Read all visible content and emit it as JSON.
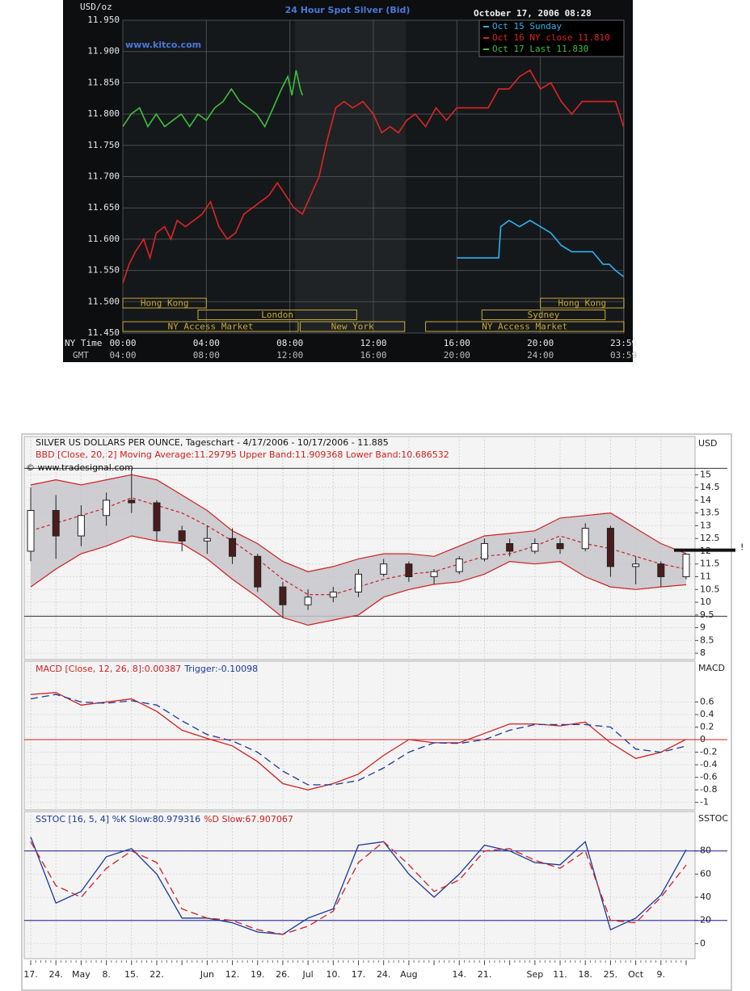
{
  "chart_data": [
    {
      "type": "line",
      "title": "24 Hour Spot Silver (Bid)",
      "timestamp": "October 17, 2006 08:28",
      "y_label": "USD/oz",
      "watermark": "www.kitco.com",
      "x_label": "NY Time",
      "x2_label": "GMT",
      "x2_ticklabels": [
        "04:00",
        "08:00",
        "12:00",
        "16:00",
        "20:00",
        "24:00",
        "03:59"
      ],
      "xlim": [
        0,
        24
      ],
      "xticks": [
        {
          "value": 0,
          "label": "00:00"
        },
        {
          "value": 4,
          "label": "04:00"
        },
        {
          "value": 8,
          "label": "08:00"
        },
        {
          "value": 12,
          "label": "12:00"
        },
        {
          "value": 16,
          "label": "16:00"
        },
        {
          "value": 20,
          "label": "20:00"
        },
        {
          "value": 23.983,
          "label": "23:59"
        }
      ],
      "ylim": [
        11.45,
        11.95
      ],
      "yticks": [
        {
          "value": 11.45,
          "label": "11.450"
        },
        {
          "value": 11.5,
          "label": "11.500"
        },
        {
          "value": 11.55,
          "label": "11.550"
        },
        {
          "value": 11.6,
          "label": "11.600"
        },
        {
          "value": 11.65,
          "label": "11.650"
        },
        {
          "value": 11.7,
          "label": "11.700"
        },
        {
          "value": 11.75,
          "label": "11.750"
        },
        {
          "value": 11.8,
          "label": "11.800"
        },
        {
          "value": 11.85,
          "label": "11.850"
        },
        {
          "value": 11.9,
          "label": "11.900"
        },
        {
          "value": 11.95,
          "label": "11.950"
        }
      ],
      "grid": true,
      "background": "#0c0e10",
      "session_color": "#c8a838",
      "sessions": [
        [
          {
            "label": "Hong Kong",
            "start": 0,
            "end": 4
          },
          {
            "label": "Hong Kong",
            "start": 20,
            "end": 24
          }
        ],
        [
          {
            "label": "London",
            "start": 3.6,
            "end": 11.2
          },
          {
            "label": "Sydney",
            "start": 17.2,
            "end": 23.1
          }
        ],
        [
          {
            "label": "NY Access Market",
            "start": 0,
            "end": 8.4
          },
          {
            "label": "New York",
            "start": 8.5,
            "end": 13.5
          },
          {
            "label": "NY Access Market",
            "start": 14.5,
            "end": 24
          }
        ]
      ],
      "series": [
        {
          "name": "Oct 15 Sunday",
          "color": "#2ab4f0",
          "x": [
            16,
            18,
            18.1,
            18.5,
            19,
            19.5,
            20,
            20.5,
            21,
            21.5,
            22,
            22.5,
            23,
            23.3,
            23.6,
            23.98
          ],
          "values": [
            11.57,
            11.57,
            11.62,
            11.63,
            11.62,
            11.63,
            11.62,
            11.61,
            11.59,
            11.58,
            11.58,
            11.58,
            11.56,
            11.56,
            11.55,
            11.54
          ]
        },
        {
          "name": "Oct 16 NY close 11.810",
          "color": "#e02424",
          "x": [
            0,
            0.3,
            0.6,
            1,
            1.3,
            1.6,
            2,
            2.3,
            2.6,
            3,
            3.4,
            3.8,
            4.2,
            4.6,
            5,
            5.4,
            5.8,
            6.2,
            6.6,
            7,
            7.4,
            7.8,
            8.2,
            8.6,
            9,
            9.4,
            9.8,
            10.2,
            10.6,
            11,
            11.5,
            12,
            12.4,
            12.8,
            13.2,
            13.6,
            14,
            14.5,
            15,
            15.5,
            16,
            17,
            17.5,
            18,
            18.5,
            19,
            19.5,
            20,
            20.5,
            21,
            21.5,
            22,
            23,
            23.6,
            23.98
          ],
          "values": [
            11.53,
            11.56,
            11.58,
            11.6,
            11.57,
            11.61,
            11.62,
            11.6,
            11.63,
            11.62,
            11.63,
            11.64,
            11.66,
            11.62,
            11.6,
            11.61,
            11.64,
            11.65,
            11.66,
            11.67,
            11.69,
            11.67,
            11.65,
            11.64,
            11.67,
            11.7,
            11.76,
            11.81,
            11.82,
            11.81,
            11.82,
            11.8,
            11.77,
            11.78,
            11.77,
            11.79,
            11.8,
            11.78,
            11.81,
            11.79,
            11.81,
            11.81,
            11.81,
            11.84,
            11.84,
            11.86,
            11.87,
            11.84,
            11.85,
            11.82,
            11.8,
            11.82,
            11.82,
            11.82,
            11.78
          ]
        },
        {
          "name": "Oct 17 Last 11.830",
          "color": "#3cc03c",
          "x": [
            0,
            0.4,
            0.8,
            1.2,
            1.6,
            2,
            2.4,
            2.8,
            3.2,
            3.6,
            4,
            4.4,
            4.8,
            5.2,
            5.6,
            6,
            6.4,
            6.8,
            7.2,
            7.6,
            7.9,
            8.1,
            8.3,
            8.5,
            8.6
          ],
          "values": [
            11.78,
            11.8,
            11.81,
            11.78,
            11.8,
            11.78,
            11.79,
            11.8,
            11.78,
            11.8,
            11.79,
            11.81,
            11.82,
            11.84,
            11.82,
            11.81,
            11.8,
            11.78,
            11.81,
            11.84,
            11.86,
            11.83,
            11.87,
            11.84,
            11.83
          ]
        }
      ]
    },
    {
      "type": "panels",
      "title": "SILVER US DOLLARS PER OUNCE, Tageschart - 4/17/2006 - 10/17/2006 - 11.885",
      "copyright": "© www.tradesignal.com",
      "categories": [
        "17.",
        "24.",
        "May",
        "8.",
        "15.",
        "22.",
        null,
        "Jun",
        "12.",
        "19.",
        "26.",
        "Jul",
        "10.",
        "17.",
        "24.",
        "Aug",
        null,
        "14.",
        "21.",
        null,
        "Sep",
        "11.",
        "18.",
        "25.",
        "Oct",
        "9.",
        null
      ],
      "panels": [
        {
          "type": "candlestick",
          "axis_label": "USD",
          "legend": "BBD [Close, 20, 2] Moving Average:11.29795 Upper Band:11.909368 Lower Band:10.686532",
          "legend_color": "#d02020",
          "marker": "!",
          "open": [
            12.0,
            13.6,
            12.6,
            13.4,
            14.0,
            13.9,
            12.8,
            12.4,
            12.5,
            11.8,
            10.6,
            9.9,
            10.2,
            10.4,
            11.1,
            11.5,
            11.0,
            11.2,
            11.7,
            12.3,
            12.0,
            12.3,
            12.1,
            12.9,
            11.4,
            11.5,
            11.0
          ],
          "high": [
            14.5,
            14.2,
            13.8,
            14.3,
            15.2,
            14.0,
            13.0,
            13.0,
            12.9,
            11.9,
            10.8,
            10.5,
            10.6,
            11.3,
            11.7,
            11.6,
            11.3,
            11.8,
            12.5,
            12.5,
            12.5,
            12.5,
            13.1,
            13.0,
            11.8,
            11.6,
            11.9
          ],
          "low": [
            11.6,
            11.7,
            12.2,
            13.0,
            13.5,
            12.4,
            12.0,
            11.9,
            11.5,
            10.4,
            9.4,
            9.7,
            10.0,
            10.2,
            11.0,
            10.8,
            10.7,
            11.1,
            11.6,
            11.8,
            11.9,
            11.9,
            12.0,
            11.0,
            10.7,
            10.6,
            10.9
          ],
          "close": [
            13.6,
            12.6,
            13.4,
            14.0,
            13.9,
            12.8,
            12.4,
            12.5,
            11.8,
            10.6,
            9.9,
            10.2,
            10.4,
            11.1,
            11.5,
            11.0,
            11.2,
            11.7,
            12.3,
            12.0,
            12.3,
            12.1,
            12.9,
            11.4,
            11.5,
            11.0,
            11.885
          ],
          "bands": {
            "color": "#d02020",
            "fill": "#c6c6cb",
            "upper": [
              14.6,
              14.8,
              14.6,
              14.8,
              15.0,
              14.8,
              14.2,
              13.6,
              12.8,
              12.3,
              11.6,
              11.2,
              11.4,
              11.7,
              11.9,
              11.9,
              11.8,
              12.2,
              12.6,
              12.7,
              12.8,
              13.3,
              13.4,
              13.5,
              12.9,
              12.3,
              11.909368
            ],
            "middle": [
              12.8,
              13.1,
              13.4,
              13.7,
              14.1,
              13.8,
              13.5,
              13.0,
              12.4,
              11.7,
              10.9,
              10.3,
              10.3,
              10.6,
              10.9,
              11.1,
              11.2,
              11.5,
              11.8,
              11.9,
              12.2,
              12.6,
              12.3,
              12.1,
              11.8,
              11.5,
              11.29795
            ],
            "lower": [
              10.6,
              11.3,
              11.9,
              12.2,
              12.6,
              12.4,
              12.3,
              11.7,
              10.9,
              10.2,
              9.4,
              9.1,
              9.3,
              9.5,
              10.2,
              10.5,
              10.7,
              10.8,
              11.1,
              11.6,
              11.5,
              11.6,
              11.0,
              10.6,
              10.5,
              10.6,
              10.686532
            ]
          },
          "hlines": [
            15.25,
            9.45
          ],
          "hline_color": "#333333",
          "ylim": [
            7.75,
            16.5
          ],
          "yticks": [
            8,
            8.5,
            9,
            9.5,
            10,
            10.5,
            11,
            11.5,
            12,
            12.5,
            13,
            13.5,
            14,
            14.5,
            15
          ]
        },
        {
          "type": "line",
          "axis_label": "MACD",
          "hlines": [
            0
          ],
          "hline_color": "#d02020",
          "series": [
            {
              "name": "MACD [Close, 12, 26, 8]:0.00387",
              "color": "#d02020",
              "dashed": false,
              "values": [
                0.72,
                0.75,
                0.55,
                0.6,
                0.65,
                0.45,
                0.15,
                0.02,
                -0.1,
                -0.35,
                -0.7,
                -0.8,
                -0.7,
                -0.55,
                -0.25,
                0.0,
                -0.05,
                -0.05,
                0.1,
                0.25,
                0.25,
                0.22,
                0.28,
                -0.05,
                -0.3,
                -0.2,
                0.00387
              ]
            },
            {
              "name": "Trigger:-0.10098",
              "color": "#1a3a9a",
              "dashed": true,
              "values": [
                0.65,
                0.72,
                0.6,
                0.58,
                0.62,
                0.55,
                0.3,
                0.08,
                -0.02,
                -0.2,
                -0.5,
                -0.72,
                -0.72,
                -0.65,
                -0.45,
                -0.2,
                -0.05,
                -0.06,
                0.0,
                0.15,
                0.24,
                0.24,
                0.24,
                0.2,
                -0.15,
                -0.2,
                -0.10098
              ]
            }
          ],
          "ylim": [
            -1.12,
            1.25
          ],
          "yticks": [
            -1,
            -0.8,
            -0.6,
            -0.4,
            -0.2,
            0,
            0.2,
            0.4,
            0.6
          ]
        },
        {
          "type": "line",
          "axis_label": "SSTOC",
          "hlines": [
            80,
            20
          ],
          "hline_color": "#1a1a8a",
          "series": [
            {
              "name": "SSTOC [16, 5, 4] %K Slow:80.979316",
              "color": "#1a3a9a",
              "dashed": false,
              "values": [
                92,
                35,
                45,
                75,
                82,
                60,
                22,
                22,
                18,
                10,
                8,
                22,
                30,
                85,
                88,
                60,
                40,
                60,
                85,
                80,
                70,
                68,
                88,
                12,
                22,
                42,
                80.979316
              ]
            },
            {
              "name": "%D Slow:67.907067",
              "color": "#d02020",
              "dashed": true,
              "values": [
                88,
                50,
                40,
                65,
                80,
                70,
                30,
                22,
                20,
                12,
                8,
                15,
                28,
                70,
                88,
                68,
                45,
                55,
                80,
                82,
                72,
                65,
                80,
                20,
                18,
                40,
                67.907067
              ]
            }
          ],
          "ylim": [
            -13,
            114
          ],
          "yticks": [
            0,
            20,
            40,
            60,
            80
          ]
        }
      ]
    }
  ]
}
